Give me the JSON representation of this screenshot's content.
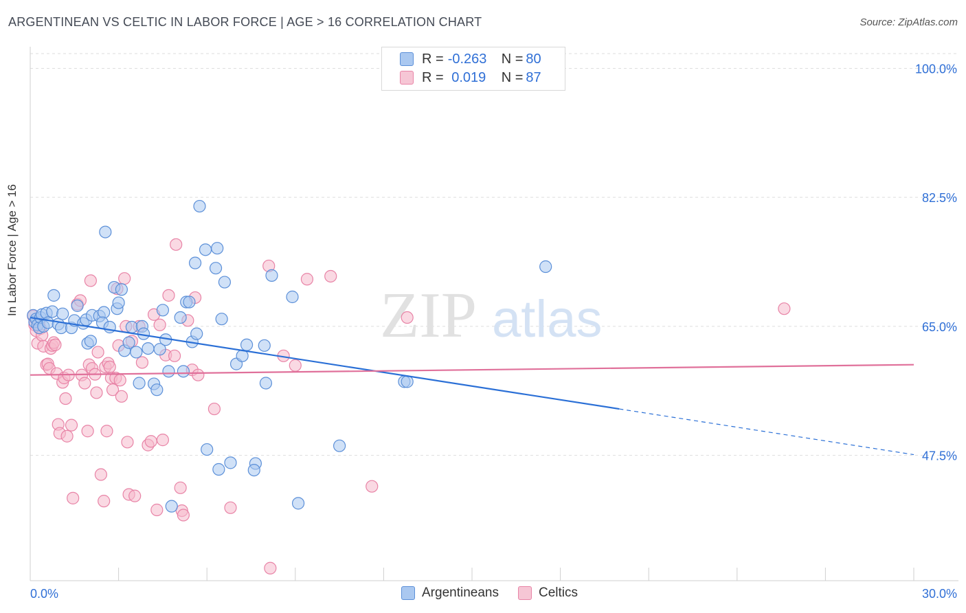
{
  "title": "ARGENTINEAN VS CELTIC IN LABOR FORCE | AGE > 16 CORRELATION CHART",
  "source": "Source: ZipAtlas.com",
  "watermark": {
    "zip": "ZIP",
    "atlas": "atlas"
  },
  "legend": {
    "rows": [
      {
        "r_label": "R = ",
        "r_value": "-0.263",
        "n_label": "N = ",
        "n_value": "80"
      },
      {
        "r_label": "R = ",
        "r_value": " 0.019",
        "n_label": "N = ",
        "n_value": "87"
      }
    ]
  },
  "bottom_legend": [
    "Argentineans",
    "Celtics"
  ],
  "colors": {
    "blue_fill": "#aac8f0",
    "blue_stroke": "#5b8fd8",
    "blue_line": "#2a6fd6",
    "pink_fill": "#f6b9cc",
    "pink_stroke": "#e883a6",
    "pink_line": "#e0709a",
    "tick_label": "#2f6fd6",
    "grid": "#dedede"
  },
  "chart_data": {
    "type": "scatter",
    "xlabel": "",
    "ylabel": "In Labor Force | Age > 16",
    "xlim": [
      0,
      30
    ],
    "ylim": [
      30.5,
      102
    ],
    "x_tick_labels": [
      "0.0%",
      "30.0%"
    ],
    "y_ticks": [
      100,
      82.5,
      65,
      47.5
    ],
    "y_tick_labels": [
      "100.0%",
      "82.5%",
      "65.0%",
      "47.5%"
    ],
    "grid": true,
    "series": [
      {
        "name": "Argentineans",
        "color": "blue",
        "points": [
          [
            0.1,
            66.5
          ],
          [
            0.15,
            65.6
          ],
          [
            0.2,
            66.0
          ],
          [
            0.25,
            65.2
          ],
          [
            0.3,
            64.8
          ],
          [
            0.35,
            66.2
          ],
          [
            0.4,
            66.6
          ],
          [
            0.45,
            65.0
          ],
          [
            0.55,
            66.8
          ],
          [
            0.6,
            65.5
          ],
          [
            0.75,
            67.0
          ],
          [
            0.8,
            69.2
          ],
          [
            0.95,
            65.3
          ],
          [
            1.1,
            66.7
          ],
          [
            1.05,
            64.8
          ],
          [
            1.4,
            64.8
          ],
          [
            1.5,
            65.8
          ],
          [
            1.6,
            67.8
          ],
          [
            1.8,
            65.4
          ],
          [
            1.9,
            65.9
          ],
          [
            1.95,
            62.7
          ],
          [
            2.05,
            63.0
          ],
          [
            2.1,
            66.5
          ],
          [
            2.35,
            66.4
          ],
          [
            2.5,
            66.9
          ],
          [
            2.45,
            65.5
          ],
          [
            2.55,
            77.8
          ],
          [
            2.7,
            64.9
          ],
          [
            2.85,
            70.3
          ],
          [
            2.95,
            67.4
          ],
          [
            3.0,
            68.2
          ],
          [
            3.1,
            70.0
          ],
          [
            3.2,
            61.7
          ],
          [
            3.35,
            62.8
          ],
          [
            3.45,
            64.9
          ],
          [
            3.6,
            61.5
          ],
          [
            3.7,
            57.3
          ],
          [
            3.8,
            65.0
          ],
          [
            3.85,
            64.0
          ],
          [
            4.0,
            62.0
          ],
          [
            4.2,
            57.2
          ],
          [
            4.3,
            56.4
          ],
          [
            4.4,
            61.9
          ],
          [
            4.5,
            67.2
          ],
          [
            4.6,
            63.2
          ],
          [
            4.7,
            58.9
          ],
          [
            4.8,
            40.6
          ],
          [
            5.1,
            66.2
          ],
          [
            5.2,
            58.9
          ],
          [
            5.3,
            68.3
          ],
          [
            5.4,
            68.3
          ],
          [
            5.5,
            62.9
          ],
          [
            5.6,
            73.6
          ],
          [
            5.65,
            64.0
          ],
          [
            5.75,
            81.3
          ],
          [
            5.95,
            75.4
          ],
          [
            6.0,
            48.3
          ],
          [
            6.3,
            72.9
          ],
          [
            6.35,
            75.6
          ],
          [
            6.4,
            45.6
          ],
          [
            6.5,
            66.0
          ],
          [
            6.6,
            71.0
          ],
          [
            6.8,
            46.5
          ],
          [
            7.0,
            59.9
          ],
          [
            7.2,
            61.0
          ],
          [
            7.35,
            62.5
          ],
          [
            7.65,
            46.4
          ],
          [
            7.6,
            45.5
          ],
          [
            7.95,
            62.4
          ],
          [
            8.0,
            57.3
          ],
          [
            8.2,
            71.9
          ],
          [
            8.9,
            69.0
          ],
          [
            9.1,
            41.0
          ],
          [
            10.5,
            48.8
          ],
          [
            12.7,
            57.5
          ],
          [
            12.8,
            57.5
          ],
          [
            17.5,
            73.1
          ]
        ]
      },
      {
        "name": "Celtics",
        "color": "pink",
        "points": [
          [
            0.1,
            66.4
          ],
          [
            0.15,
            65.2
          ],
          [
            0.2,
            64.4
          ],
          [
            0.25,
            62.7
          ],
          [
            0.3,
            65.5
          ],
          [
            0.35,
            64.7
          ],
          [
            0.4,
            63.8
          ],
          [
            0.45,
            62.3
          ],
          [
            0.55,
            59.8
          ],
          [
            0.6,
            59.9
          ],
          [
            0.65,
            59.3
          ],
          [
            0.7,
            62.0
          ],
          [
            0.75,
            62.4
          ],
          [
            0.8,
            62.8
          ],
          [
            0.85,
            62.5
          ],
          [
            0.9,
            58.6
          ],
          [
            0.95,
            51.7
          ],
          [
            1.0,
            50.5
          ],
          [
            1.1,
            57.4
          ],
          [
            1.15,
            58.0
          ],
          [
            1.2,
            55.2
          ],
          [
            1.25,
            50.1
          ],
          [
            1.3,
            58.4
          ],
          [
            1.4,
            51.6
          ],
          [
            1.45,
            41.7
          ],
          [
            1.6,
            68.0
          ],
          [
            1.7,
            68.5
          ],
          [
            1.75,
            58.4
          ],
          [
            1.85,
            57.3
          ],
          [
            1.95,
            50.8
          ],
          [
            2.0,
            59.8
          ],
          [
            2.05,
            71.2
          ],
          [
            2.1,
            59.3
          ],
          [
            2.2,
            58.5
          ],
          [
            2.25,
            56.0
          ],
          [
            2.3,
            61.5
          ],
          [
            2.4,
            44.9
          ],
          [
            2.5,
            41.3
          ],
          [
            2.55,
            59.5
          ],
          [
            2.6,
            50.8
          ],
          [
            2.65,
            60.0
          ],
          [
            2.7,
            59.5
          ],
          [
            2.75,
            58.0
          ],
          [
            2.8,
            56.4
          ],
          [
            2.9,
            58.0
          ],
          [
            2.95,
            70.1
          ],
          [
            3.0,
            62.4
          ],
          [
            3.05,
            57.7
          ],
          [
            3.1,
            55.5
          ],
          [
            3.2,
            71.5
          ],
          [
            3.25,
            65.0
          ],
          [
            3.3,
            49.3
          ],
          [
            3.35,
            42.2
          ],
          [
            3.45,
            63.0
          ],
          [
            3.55,
            42.0
          ],
          [
            3.7,
            65.0
          ],
          [
            3.8,
            60.1
          ],
          [
            4.0,
            48.9
          ],
          [
            4.1,
            49.4
          ],
          [
            4.2,
            66.6
          ],
          [
            4.3,
            40.1
          ],
          [
            4.4,
            65.2
          ],
          [
            4.5,
            49.6
          ],
          [
            4.6,
            61.1
          ],
          [
            4.7,
            69.2
          ],
          [
            4.9,
            61.0
          ],
          [
            4.95,
            76.1
          ],
          [
            5.1,
            43.1
          ],
          [
            5.15,
            40.0
          ],
          [
            5.2,
            39.4
          ],
          [
            5.35,
            65.8
          ],
          [
            5.5,
            59.1
          ],
          [
            5.6,
            68.9
          ],
          [
            5.7,
            58.4
          ],
          [
            6.25,
            53.8
          ],
          [
            6.8,
            40.4
          ],
          [
            8.1,
            73.2
          ],
          [
            8.15,
            32.2
          ],
          [
            8.6,
            61.0
          ],
          [
            9.0,
            59.7
          ],
          [
            9.4,
            71.4
          ],
          [
            10.2,
            71.8
          ],
          [
            11.6,
            43.3
          ],
          [
            12.8,
            66.2
          ],
          [
            25.6,
            67.4
          ]
        ]
      }
    ],
    "trend_lines": [
      {
        "series": "Argentineans",
        "x1": 0,
        "y1": 66.2,
        "x2": 30,
        "y2": 47.6,
        "solid_until_x": 20.0
      },
      {
        "series": "Celtics",
        "x1": 0,
        "y1": 58.4,
        "x2": 30,
        "y2": 59.8,
        "solid_until_x": 30
      }
    ]
  }
}
